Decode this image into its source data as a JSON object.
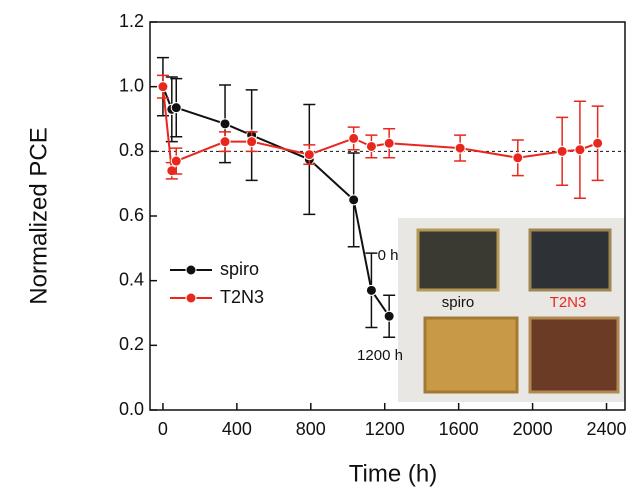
{
  "chart_data": {
    "type": "line",
    "x_label": "Time (h)",
    "y_label": "Normalized PCE",
    "xlim": [
      -70,
      2500
    ],
    "ylim": [
      0,
      1.2
    ],
    "xticks": [
      0,
      400,
      800,
      1200,
      1600,
      2000,
      2400
    ],
    "yticks": [
      {
        "value": 0,
        "label": "0.0"
      },
      {
        "value": 0.2,
        "label": "0.2"
      },
      {
        "value": 0.4,
        "label": "0.4"
      },
      {
        "value": 0.6,
        "label": "0.6"
      },
      {
        "value": 0.8,
        "label": "0.8"
      },
      {
        "value": 1.0,
        "label": "1.0"
      },
      {
        "value": 1.2,
        "label": "1.2"
      }
    ],
    "reference_line": 0.8,
    "series": [
      {
        "name": "spiro",
        "color": "#111111",
        "x": [
          0,
          48,
          72,
          336,
          480,
          792,
          1032,
          1128,
          1224
        ],
        "values": [
          1.0,
          0.93,
          0.935,
          0.885,
          0.85,
          0.775,
          0.65,
          0.37,
          0.29
        ],
        "errors": [
          0.09,
          0.1,
          0.09,
          0.12,
          0.14,
          0.17,
          0.145,
          0.115,
          0.065
        ]
      },
      {
        "name": "T2N3",
        "color": "#e8281e",
        "x": [
          0,
          48,
          72,
          336,
          480,
          792,
          1032,
          1128,
          1224,
          1608,
          1920,
          2160,
          2256,
          2352
        ],
        "values": [
          1.0,
          0.74,
          0.77,
          0.83,
          0.83,
          0.79,
          0.84,
          0.815,
          0.825,
          0.81,
          0.78,
          0.8,
          0.805,
          0.825
        ],
        "errors": [
          0.035,
          0.025,
          0.04,
          0.03,
          0.03,
          0.03,
          0.035,
          0.035,
          0.045,
          0.04,
          0.055,
          0.105,
          0.15,
          0.115
        ]
      }
    ],
    "inset": {
      "rows": [
        "0 h",
        "1200 h"
      ],
      "columns": [
        "spiro",
        "T2N3"
      ]
    }
  }
}
